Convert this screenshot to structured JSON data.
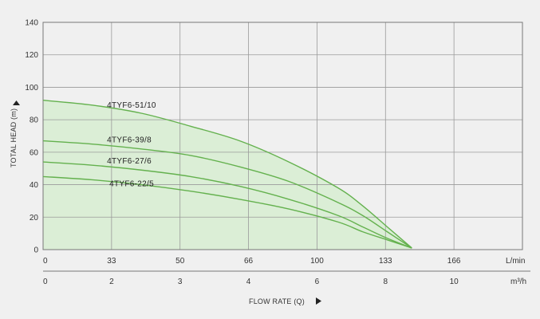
{
  "chart_data": {
    "type": "line",
    "title": "",
    "ylabel": "TOTAL HEAD (m)",
    "xlabel": "FLOW RATE (Q)",
    "ylim": [
      0,
      140
    ],
    "y_ticks": [
      0,
      20,
      40,
      60,
      80,
      100,
      120,
      140
    ],
    "xlim": [
      0,
      195
    ],
    "x_ticks_lmin": [
      "0",
      "33",
      "50",
      "66",
      "100",
      "133",
      "166"
    ],
    "x_unit_lmin": "L/min",
    "x_ticks_m3h": [
      "0",
      "2",
      "3",
      "4",
      "6",
      "8",
      "10"
    ],
    "x_unit_m3h": "m³/h",
    "grid": true,
    "fill_color": "#dbeed6",
    "line_color": "#64b14e",
    "series": [
      {
        "name": "4TYF6-51/10",
        "x": [
          0,
          20,
          40,
          60,
          80,
          100,
          120,
          130,
          140,
          150
        ],
        "y": [
          92,
          89,
          84,
          76,
          67,
          54,
          38,
          27,
          14,
          1
        ]
      },
      {
        "name": "4TYF6-39/8",
        "x": [
          0,
          20,
          40,
          60,
          80,
          100,
          120,
          130,
          140,
          150
        ],
        "y": [
          67,
          65,
          62,
          58,
          51,
          42,
          29,
          21,
          11,
          1
        ]
      },
      {
        "name": "4TYF6-27/6",
        "x": [
          0,
          20,
          40,
          60,
          80,
          100,
          120,
          130,
          140,
          150
        ],
        "y": [
          54,
          52,
          49,
          45,
          39,
          31,
          21,
          14,
          7,
          1
        ]
      },
      {
        "name": "4TYF6-22/5",
        "x": [
          0,
          20,
          40,
          60,
          80,
          100,
          120,
          130,
          140,
          150
        ],
        "y": [
          45,
          43,
          40,
          36,
          31,
          25,
          17,
          11,
          6,
          1
        ]
      }
    ]
  }
}
